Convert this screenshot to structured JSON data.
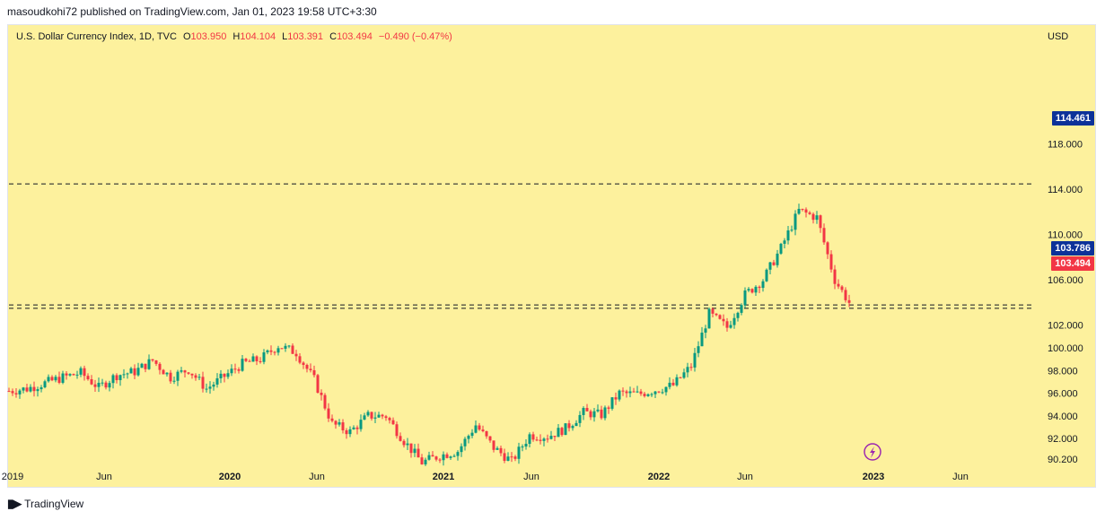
{
  "header": {
    "published": "masoudkohi72 published on TradingView.com, Jan 01, 2023 19:58 UTC+3:30"
  },
  "legend": {
    "symbol": "U.S. Dollar Currency Index, 1D, TVC",
    "o_label": "O",
    "o": "103.950",
    "h_label": "H",
    "h": "104.104",
    "l_label": "L",
    "l": "103.391",
    "c_label": "C",
    "c": "103.494",
    "change": "−0.490 (−0.47%)"
  },
  "colors": {
    "background": "#fdf19d",
    "up": "#089981",
    "down": "#f23645",
    "label_blue": "#0c3299",
    "label_red": "#f23645"
  },
  "price_labels": {
    "high": "114.461",
    "mid": "103.786",
    "last": "103.494"
  },
  "footer": {
    "brand": "TradingView"
  },
  "chart_data": {
    "type": "line",
    "title": "U.S. Dollar Currency Index, 1D, TVC",
    "ylabel": "USD",
    "ylim": [
      90.2,
      120.0
    ],
    "y_ticks": [
      "118.000",
      "114.000",
      "110.000",
      "106.000",
      "102.000",
      "100.000",
      "98.000",
      "96.000",
      "94.000",
      "92.000",
      "90.200"
    ],
    "x_ticks": [
      "2019",
      "Jun",
      "2020",
      "Jun",
      "2021",
      "Jun",
      "2022",
      "Jun",
      "2023",
      "Jun"
    ],
    "x_ticks_bold": [
      "2020",
      "2021",
      "2022",
      "2023"
    ],
    "horizontal_lines": [
      114.461,
      103.786,
      103.494
    ],
    "series": [
      {
        "x": [
          "2019-01",
          "2019-02",
          "2019-03",
          "2019-04",
          "2019-05",
          "2019-06",
          "2019-07",
          "2019-08",
          "2019-09",
          "2019-10",
          "2019-11",
          "2019-12",
          "2020-01",
          "2020-02",
          "2020-03",
          "2020-04",
          "2020-05",
          "2020-06",
          "2020-07",
          "2020-08",
          "2020-09",
          "2020-10",
          "2020-11",
          "2020-12",
          "2021-01",
          "2021-02",
          "2021-03",
          "2021-04",
          "2021-05",
          "2021-06",
          "2021-07",
          "2021-08",
          "2021-09",
          "2021-10",
          "2021-11",
          "2021-12",
          "2022-01",
          "2022-02",
          "2022-03",
          "2022-04",
          "2022-05",
          "2022-06",
          "2022-07",
          "2022-08",
          "2022-09",
          "2022-10",
          "2022-11",
          "2022-12"
        ],
        "values": [
          96.2,
          96.4,
          96.9,
          97.4,
          97.8,
          96.5,
          97.6,
          97.9,
          98.9,
          97.4,
          98.1,
          96.4,
          97.5,
          98.6,
          99.0,
          100.2,
          99.6,
          97.2,
          93.3,
          92.6,
          94.0,
          94.0,
          91.8,
          89.9,
          90.5,
          90.9,
          93.2,
          91.2,
          90.0,
          92.3,
          92.2,
          92.9,
          94.3,
          94.1,
          96.0,
          95.9,
          96.3,
          96.7,
          98.4,
          103.0,
          101.8,
          104.7,
          106.0,
          108.8,
          112.1,
          111.5,
          106.0,
          103.494
        ]
      }
    ]
  }
}
